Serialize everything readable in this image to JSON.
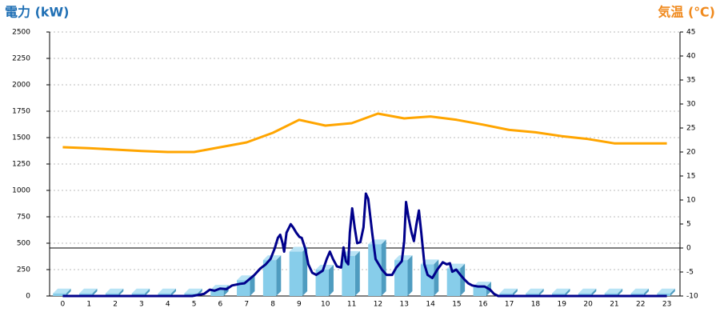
{
  "chart_data": {
    "type": "combo",
    "title": "電力 (kW)",
    "y2_title": "気温 (℃)",
    "categories": [
      "0",
      "1",
      "2",
      "3",
      "4",
      "5",
      "6",
      "7",
      "8",
      "9",
      "10",
      "11",
      "12",
      "13",
      "14",
      "15",
      "16",
      "17",
      "18",
      "19",
      "20",
      "21",
      "22",
      "23"
    ],
    "xlim": [
      -0.5,
      23.5
    ],
    "ylim": [
      0,
      2500
    ],
    "yticks": [
      0,
      250,
      500,
      750,
      1000,
      1250,
      1500,
      1750,
      2000,
      2250,
      2500
    ],
    "y2lim": [
      -10,
      45
    ],
    "y2ticks": [
      -10,
      -5,
      0,
      5,
      10,
      15,
      20,
      25,
      30,
      35,
      40,
      45
    ],
    "grid": true,
    "y2_zero_line": true,
    "series": [
      {
        "type": "bar",
        "color": "#87cdea",
        "values": [
          25,
          25,
          25,
          25,
          25,
          25,
          60,
          150,
          340,
          420,
          250,
          380,
          490,
          340,
          300,
          260,
          90,
          25,
          25,
          25,
          25,
          25,
          25,
          25
        ]
      },
      {
        "type": "line",
        "color": "#00008b",
        "x": [
          0,
          4.93,
          5.38,
          5.6,
          5.78,
          5.99,
          6.24,
          6.45,
          6.75,
          6.92,
          7.06,
          7.3,
          7.52,
          7.73,
          7.91,
          8.07,
          8.19,
          8.28,
          8.37,
          8.43,
          8.52,
          8.68,
          8.77,
          8.89,
          9.01,
          9.1,
          9.23,
          9.35,
          9.5,
          9.65,
          9.9,
          10.05,
          10.17,
          10.29,
          10.44,
          10.6,
          10.69,
          10.78,
          10.87,
          10.93,
          11.02,
          11.12,
          11.21,
          11.33,
          11.45,
          11.54,
          11.63,
          11.78,
          11.91,
          12.03,
          12.15,
          12.33,
          12.54,
          12.7,
          12.91,
          13,
          13.07,
          13.16,
          13.28,
          13.37,
          13.46,
          13.56,
          13.65,
          13.77,
          13.89,
          14.07,
          14.26,
          14.47,
          14.62,
          14.74,
          14.83,
          14.98,
          15.14,
          15.28,
          15.44,
          15.59,
          15.81,
          16.06,
          16.27,
          16.42,
          16.58,
          23
        ],
        "values": [
          0,
          0,
          20,
          60,
          50,
          70,
          65,
          100,
          115,
          120,
          150,
          200,
          260,
          300,
          350,
          450,
          550,
          580,
          500,
          420,
          600,
          680,
          650,
          600,
          560,
          550,
          450,
          300,
          220,
          200,
          240,
          350,
          420,
          350,
          280,
          270,
          460,
          330,
          300,
          600,
          830,
          640,
          500,
          510,
          650,
          970,
          920,
          600,
          350,
          300,
          250,
          200,
          200,
          270,
          330,
          520,
          890,
          750,
          600,
          520,
          670,
          810,
          600,
          300,
          200,
          170,
          250,
          320,
          300,
          310,
          230,
          250,
          200,
          160,
          120,
          100,
          90,
          90,
          60,
          20,
          0,
          0
        ]
      },
      {
        "type": "line",
        "axis": "y2",
        "color": "#ffa500",
        "values": [
          21,
          20.8,
          20.5,
          20.2,
          20,
          20,
          21,
          22,
          24,
          26.7,
          25.5,
          26,
          28,
          27,
          27.4,
          26.7,
          25.7,
          24.6,
          24.1,
          23.3,
          22.7,
          21.8,
          21.8,
          21.8
        ]
      }
    ]
  }
}
